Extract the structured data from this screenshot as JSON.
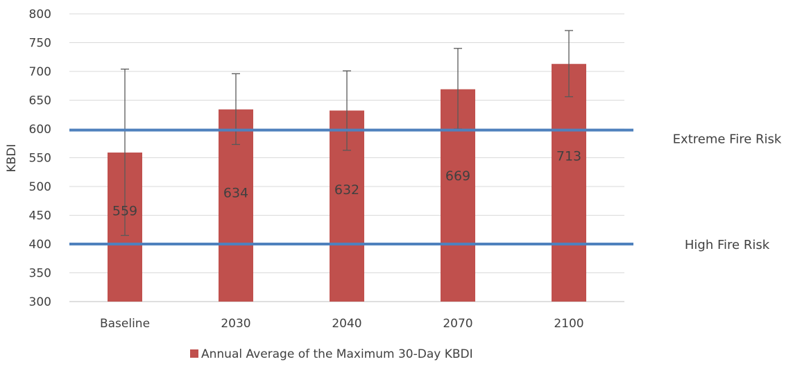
{
  "chart_data": {
    "type": "bar",
    "title": "",
    "xlabel": "",
    "ylabel": "KBDI",
    "ylim": [
      300,
      800
    ],
    "yticks": [
      300,
      350,
      400,
      450,
      500,
      550,
      600,
      650,
      700,
      750,
      800
    ],
    "grid": true,
    "legend_position": "bottom",
    "categories": [
      "Baseline",
      "2030",
      "2040",
      "2070",
      "2100"
    ],
    "series": [
      {
        "name": "Annual Average of the Maximum 30-Day KBDI",
        "color": "#c0504d",
        "values": [
          559,
          634,
          632,
          669,
          713
        ],
        "data_labels": [
          "559",
          "634",
          "632",
          "669",
          "713"
        ],
        "error_low": [
          415,
          573,
          563,
          600,
          656
        ],
        "error_high": [
          704,
          696,
          701,
          740,
          771
        ]
      }
    ],
    "reference_lines": [
      {
        "label": "Extreme Fire Risk",
        "value": 598,
        "color": "#4f81bd"
      },
      {
        "label": "High Fire Risk",
        "value": 400,
        "color": "#4f81bd"
      }
    ]
  }
}
